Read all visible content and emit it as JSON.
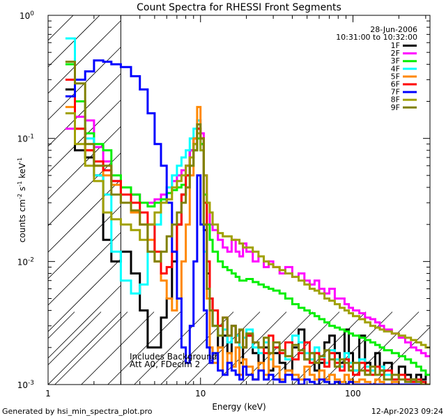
{
  "chart_data": {
    "type": "line",
    "title": "Count Spectra for RHESSI Front Segments",
    "xlabel": "Energy (keV)",
    "ylabel": {
      "base": "counts cm",
      "exp1": "-2",
      "mid1": " s",
      "exp2": "-1",
      "mid2": " keV",
      "exp3": "-1"
    },
    "x_scale": "log",
    "y_scale": "log",
    "xlim": [
      1,
      320
    ],
    "ylim": [
      0.001,
      1
    ],
    "x_ticks": [
      {
        "value": 1,
        "label": "1"
      },
      {
        "value": 10,
        "label": "10"
      },
      {
        "value": 100,
        "label": "100"
      }
    ],
    "y_ticks": [
      {
        "value": 1,
        "base": "10",
        "exp": "0"
      },
      {
        "value": 0.1,
        "base": "10",
        "exp": "-1"
      },
      {
        "value": 0.01,
        "base": "10",
        "exp": "-2"
      },
      {
        "value": 0.001,
        "base": "10",
        "exp": "-3"
      }
    ],
    "attenuator_cutoff_keV": 3,
    "date": "28-Jun-2006",
    "time_range": "10:31:00 to 10:32:00",
    "note_lines": [
      "Includes Background",
      "Att A0, FDecim 2"
    ],
    "energy_bins": [
      1.3,
      1.5,
      1.75,
      2.0,
      2.3,
      2.6,
      3.0,
      3.5,
      4.0,
      4.5,
      5.0,
      5.5,
      6.0,
      6.5,
      7.0,
      7.5,
      8.0,
      8.5,
      9.0,
      9.5,
      10.0,
      10.5,
      11.0,
      11.5,
      12.0,
      13.0,
      14.0,
      15.0,
      16.0,
      17.0,
      18.0,
      19.0,
      20.0,
      22.0,
      24.0,
      26.0,
      28.0,
      30.0,
      33.0,
      36.0,
      40.0,
      44.0,
      48.0,
      52.0,
      56.0,
      60.0,
      65.0,
      70.0,
      76.0,
      82.0,
      88.0,
      94.0,
      100.0,
      110.0,
      120.0,
      130.0,
      140.0,
      150.0,
      160.0,
      180.0,
      200.0,
      220.0,
      240.0,
      260.0,
      280.0,
      300.0,
      320.0
    ],
    "series": [
      {
        "name": "1F",
        "color": "#000000",
        "values": [
          0.25,
          0.08,
          0.07,
          0.05,
          0.015,
          0.01,
          0.012,
          0.008,
          0.004,
          0.002,
          0.002,
          0.0035,
          0.005,
          0.01,
          0.02,
          0.035,
          0.06,
          0.08,
          0.1,
          0.12,
          0.09,
          0.018,
          0.008,
          0.005,
          0.003,
          0.002,
          0.0025,
          0.0018,
          0.003,
          0.0022,
          0.0015,
          0.002,
          0.0025,
          0.0018,
          0.0015,
          0.002,
          0.0013,
          0.0018,
          0.0015,
          0.0013,
          0.002,
          0.0028,
          0.0016,
          0.0018,
          0.0013,
          0.0015,
          0.0022,
          0.0025,
          0.0018,
          0.0015,
          0.0028,
          0.0018,
          0.0013,
          0.0025,
          0.0015,
          0.0012,
          0.0018,
          0.0013,
          0.0015,
          0.0012,
          0.0014,
          0.0012,
          0.0011,
          0.0012,
          0.0011,
          0.0012
        ]
      },
      {
        "name": "2F",
        "color": "#ff00ff",
        "values": [
          0.12,
          0.15,
          0.14,
          0.085,
          0.065,
          0.045,
          0.04,
          0.035,
          0.03,
          0.03,
          0.032,
          0.035,
          0.04,
          0.045,
          0.05,
          0.055,
          0.06,
          0.08,
          0.1,
          0.14,
          0.11,
          0.05,
          0.03,
          0.02,
          0.018,
          0.015,
          0.013,
          0.012,
          0.015,
          0.012,
          0.011,
          0.014,
          0.012,
          0.01,
          0.011,
          0.009,
          0.01,
          0.009,
          0.008,
          0.009,
          0.0075,
          0.008,
          0.007,
          0.0065,
          0.007,
          0.006,
          0.0055,
          0.006,
          0.005,
          0.005,
          0.0045,
          0.0042,
          0.004,
          0.0038,
          0.0035,
          0.0034,
          0.0032,
          0.003,
          0.0028,
          0.0026,
          0.0024,
          0.0022,
          0.002,
          0.0019,
          0.0018,
          0.0017
        ]
      },
      {
        "name": "3F",
        "color": "#00ee00",
        "values": [
          0.4,
          0.2,
          0.11,
          0.09,
          0.08,
          0.05,
          0.04,
          0.035,
          0.03,
          0.028,
          0.03,
          0.032,
          0.036,
          0.038,
          0.04,
          0.042,
          0.05,
          0.06,
          0.08,
          0.1,
          0.09,
          0.035,
          0.02,
          0.015,
          0.012,
          0.01,
          0.009,
          0.0085,
          0.008,
          0.0075,
          0.007,
          0.007,
          0.0072,
          0.0068,
          0.0065,
          0.0062,
          0.006,
          0.0058,
          0.0055,
          0.005,
          0.0045,
          0.0042,
          0.004,
          0.0038,
          0.0036,
          0.0034,
          0.0032,
          0.003,
          0.0029,
          0.0028,
          0.0027,
          0.0026,
          0.0025,
          0.0024,
          0.0023,
          0.0022,
          0.0021,
          0.002,
          0.0019,
          0.0018,
          0.0017,
          0.0016,
          0.0015,
          0.0014,
          0.0013,
          0.0012
        ]
      },
      {
        "name": "4F",
        "color": "#00ffff",
        "values": [
          0.65,
          0.12,
          0.1,
          0.05,
          0.035,
          0.012,
          0.007,
          0.0055,
          0.0065,
          0.012,
          0.02,
          0.03,
          0.04,
          0.05,
          0.06,
          0.07,
          0.08,
          0.1,
          0.12,
          0.14,
          0.08,
          0.012,
          0.006,
          0.004,
          0.003,
          0.0025,
          0.0028,
          0.0022,
          0.003,
          0.0025,
          0.002,
          0.0024,
          0.0028,
          0.002,
          0.0018,
          0.0022,
          0.0016,
          0.002,
          0.0018,
          0.0016,
          0.0025,
          0.0022,
          0.0018,
          0.0016,
          0.002,
          0.0017,
          0.0015,
          0.0019,
          0.0016,
          0.0014,
          0.0018,
          0.0015,
          0.0013,
          0.0016,
          0.0014,
          0.0013,
          0.0012,
          0.0014,
          0.0012,
          0.0011,
          0.0012,
          0.0011,
          0.00105,
          0.0011,
          0.00105,
          0.001
        ]
      },
      {
        "name": "5F",
        "color": "#ff8800",
        "values": [
          0.18,
          0.12,
          0.08,
          0.06,
          0.05,
          0.042,
          0.03,
          0.025,
          0.02,
          0.015,
          0.01,
          0.007,
          0.005,
          0.004,
          0.005,
          0.01,
          0.02,
          0.05,
          0.1,
          0.18,
          0.1,
          0.02,
          0.005,
          0.002,
          0.0015,
          0.002,
          0.0012,
          0.0018,
          0.0014,
          0.002,
          0.0012,
          0.0016,
          0.0014,
          0.0011,
          0.0015,
          0.0012,
          0.0018,
          0.0014,
          0.0011,
          0.0013,
          0.0012,
          0.0011,
          0.0014,
          0.0012,
          0.0011,
          0.0013,
          0.0011,
          0.0012,
          0.0011,
          0.00105,
          0.0012,
          0.0011,
          0.00105,
          0.0011,
          0.00105,
          0.001,
          0.0011,
          0.00105,
          0.001,
          0.00105,
          0.001,
          0.001,
          0.001,
          0.001,
          0.001,
          0.001
        ]
      },
      {
        "name": "6F",
        "color": "#ff0000",
        "values": [
          0.3,
          0.12,
          0.08,
          0.065,
          0.055,
          0.045,
          0.035,
          0.03,
          0.025,
          0.02,
          0.012,
          0.008,
          0.009,
          0.012,
          0.02,
          0.035,
          0.05,
          0.07,
          0.09,
          0.12,
          0.1,
          0.03,
          0.01,
          0.005,
          0.004,
          0.003,
          0.0035,
          0.0025,
          0.003,
          0.0022,
          0.0028,
          0.002,
          0.0025,
          0.0022,
          0.002,
          0.0018,
          0.0025,
          0.002,
          0.0018,
          0.0022,
          0.0016,
          0.0018,
          0.0022,
          0.0015,
          0.0018,
          0.0016,
          0.0014,
          0.0018,
          0.0015,
          0.0013,
          0.0016,
          0.0014,
          0.0012,
          0.0015,
          0.0013,
          0.0012,
          0.0014,
          0.0012,
          0.0013,
          0.0011,
          0.0012,
          0.0011,
          0.00105,
          0.0011,
          0.00105,
          0.001
        ]
      },
      {
        "name": "7F",
        "color": "#0000ff",
        "values": [
          0.22,
          0.3,
          0.35,
          0.43,
          0.42,
          0.4,
          0.38,
          0.32,
          0.25,
          0.16,
          0.09,
          0.06,
          0.03,
          0.012,
          0.005,
          0.002,
          0.0015,
          0.003,
          0.01,
          0.05,
          0.02,
          0.004,
          0.002,
          0.0015,
          0.0018,
          0.0013,
          0.0012,
          0.0015,
          0.0013,
          0.0012,
          0.0011,
          0.0014,
          0.0012,
          0.0011,
          0.0013,
          0.0011,
          0.0012,
          0.0011,
          0.00105,
          0.0012,
          0.0011,
          0.001,
          0.0011,
          0.00105,
          0.001,
          0.0011,
          0.00105,
          0.001,
          0.00105,
          0.001,
          0.001,
          0.00105,
          0.001,
          0.001,
          0.001,
          0.001,
          0.001,
          0.001,
          0.001,
          0.001,
          0.001,
          0.001,
          0.001,
          0.001,
          0.001,
          0.001
        ]
      },
      {
        "name": "8F",
        "color": "#a0a000",
        "values": [
          0.16,
          0.09,
          0.06,
          0.045,
          0.025,
          0.022,
          0.02,
          0.018,
          0.015,
          0.02,
          0.025,
          0.03,
          0.032,
          0.04,
          0.045,
          0.05,
          0.06,
          0.07,
          0.09,
          0.11,
          0.08,
          0.05,
          0.03,
          0.025,
          0.02,
          0.017,
          0.016,
          0.016,
          0.015,
          0.015,
          0.014,
          0.013,
          0.013,
          0.012,
          0.011,
          0.01,
          0.0095,
          0.009,
          0.0085,
          0.008,
          0.0075,
          0.007,
          0.0065,
          0.006,
          0.0058,
          0.0055,
          0.005,
          0.0048,
          0.0045,
          0.0042,
          0.004,
          0.0038,
          0.0036,
          0.0034,
          0.0032,
          0.003,
          0.0029,
          0.0028,
          0.0027,
          0.0026,
          0.0025,
          0.0024,
          0.0023,
          0.0022,
          0.0021,
          0.002
        ]
      },
      {
        "name": "9F",
        "color": "#808000",
        "values": [
          0.42,
          0.28,
          0.09,
          0.06,
          0.06,
          0.035,
          0.03,
          0.026,
          0.02,
          0.012,
          0.01,
          0.012,
          0.016,
          0.02,
          0.025,
          0.03,
          0.04,
          0.06,
          0.08,
          0.13,
          0.1,
          0.02,
          0.006,
          0.004,
          0.003,
          0.0025,
          0.0035,
          0.0025,
          0.003,
          0.0022,
          0.0028,
          0.002,
          0.0026,
          0.0022,
          0.002,
          0.0024,
          0.0018,
          0.0022,
          0.0019,
          0.0017,
          0.0021,
          0.0019,
          0.0016,
          0.0018,
          0.0015,
          0.0017,
          0.0019,
          0.0016,
          0.0014,
          0.0016,
          0.0015,
          0.0013,
          0.0015,
          0.0013,
          0.0012,
          0.0014,
          0.0012,
          0.0013,
          0.0011,
          0.0012,
          0.0011,
          0.00105,
          0.0011,
          0.00105,
          0.001,
          0.001
        ]
      }
    ]
  },
  "footer": {
    "generated_by": "Generated by hsi_min_spectra_plot.pro",
    "timestamp": "12-Apr-2023 09:24"
  }
}
